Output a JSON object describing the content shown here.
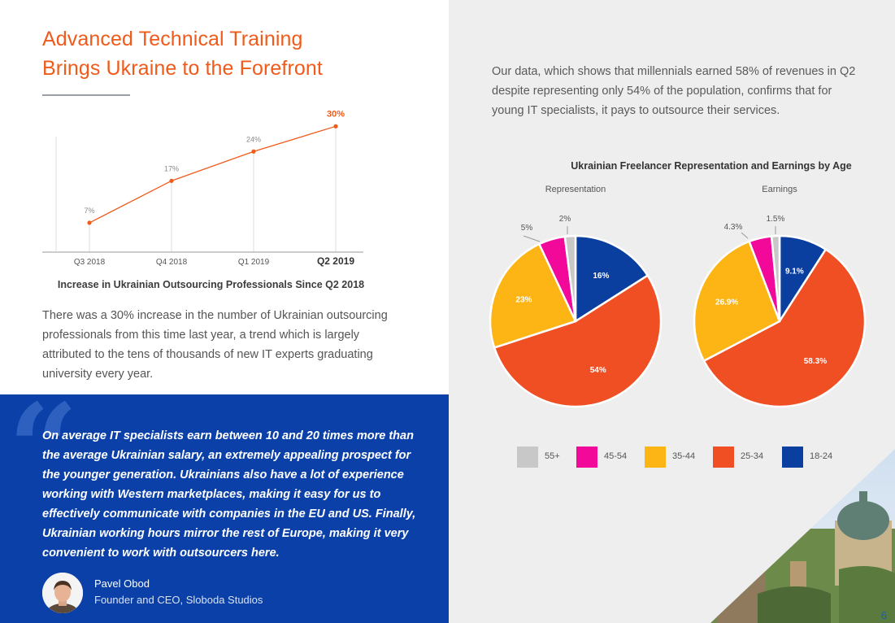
{
  "left": {
    "headline": [
      "Advanced Technical Training",
      "Brings Ukraine to the Forefront"
    ],
    "chart_caption": "Increase in Ukrainian Outsourcing Professionals Since Q2 2018",
    "body": "There was a 30% increase in the number of Ukrainian outsourcing professionals from this time last year, a trend which is largely attributed to the tens of thousands of new IT experts graduating university every year."
  },
  "quote": {
    "mark": "“",
    "text": "On average IT specialists earn between 10 and 20 times more than the average Ukrainian salary, an extremely appealing prospect for the younger generation. Ukrainians also have a lot of experience working with Western marketplaces, making it easy for us to effectively communicate with companies in the EU and US. Finally, Ukrainian working hours mirror the rest of Europe, making it very convenient to work with outsourcers here.",
    "author_name": "Pavel Obod",
    "author_role": "Founder and CEO, Sloboda Studios"
  },
  "right": {
    "paragraph": "Our data, which shows that millennials earned 58% of revenues in Q2 despite representing only 54% of the population, confirms that for young IT specialists, it pays to outsource their services.",
    "page_number": "6"
  },
  "colors": {
    "accent": "#f05a1a",
    "quote_bg": "#0a40a8",
    "right_bg": "#eeeeef",
    "c55": "#c8c8c8",
    "c4554": "#f2099a",
    "c3544": "#fdb515",
    "c2534": "#f04e23",
    "c1824": "#0a3fa0"
  },
  "chart_data": [
    {
      "type": "line",
      "categories": [
        "Q3 2018",
        "Q4 2018",
        "Q1 2019",
        "Q2 2019"
      ],
      "values": [
        7,
        17,
        24,
        30
      ],
      "data_labels": [
        "7%",
        "17%",
        "24%",
        "30%"
      ],
      "title": "Increase in Ukrainian Outsourcing Professionals Since Q2 2018",
      "xlabel": "",
      "ylabel": "",
      "ylim": [
        0,
        32
      ],
      "grid": false,
      "color": "#f05a1a"
    },
    {
      "type": "pie",
      "title": "Ukrainian Freelancer Representation and Earnings by Age",
      "legend": [
        "55+",
        "45-54",
        "35-44",
        "25-34",
        "18-24"
      ],
      "legend_colors": [
        "#c8c8c8",
        "#f2099a",
        "#fdb515",
        "#f04e23",
        "#0a3fa0"
      ],
      "legend_position": "bottom",
      "series": [
        {
          "name": "Representation",
          "slices": [
            {
              "label": "18-24",
              "value": 16,
              "text": "16%"
            },
            {
              "label": "25-34",
              "value": 54,
              "text": "54%"
            },
            {
              "label": "35-44",
              "value": 23,
              "text": "23%"
            },
            {
              "label": "45-54",
              "value": 5,
              "text": "5%"
            },
            {
              "label": "55+",
              "value": 2,
              "text": "2%"
            }
          ]
        },
        {
          "name": "Earnings",
          "slices": [
            {
              "label": "18-24",
              "value": 9.1,
              "text": "9.1%"
            },
            {
              "label": "25-34",
              "value": 58.3,
              "text": "58.3%"
            },
            {
              "label": "35-44",
              "value": 26.9,
              "text": "26.9%"
            },
            {
              "label": "45-54",
              "value": 4.3,
              "text": "4.3%"
            },
            {
              "label": "55+",
              "value": 1.5,
              "text": "1.5%"
            }
          ]
        }
      ]
    }
  ]
}
